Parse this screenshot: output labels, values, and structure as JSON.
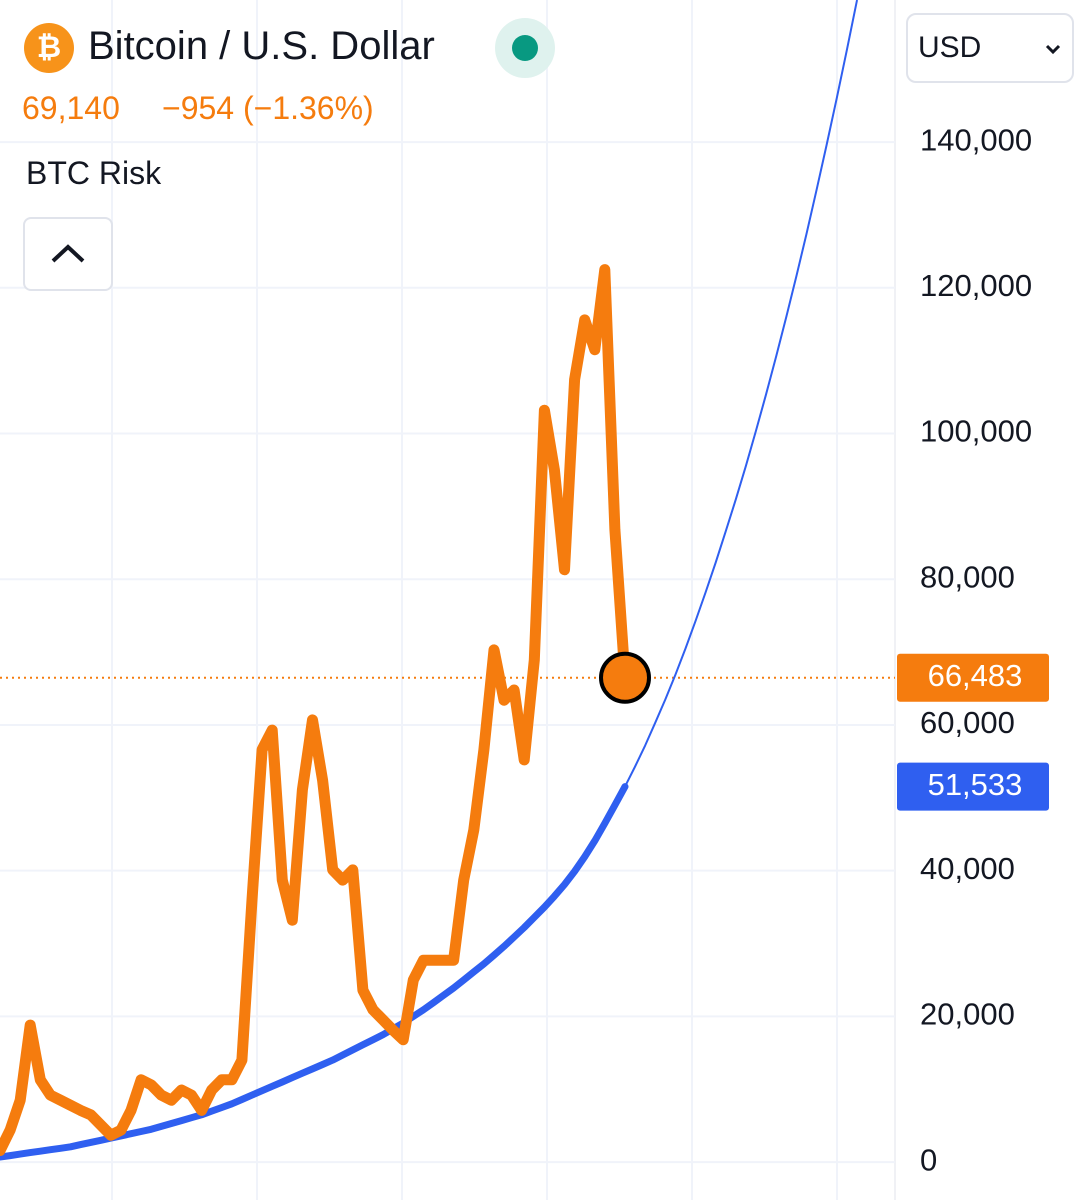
{
  "header": {
    "price": "69,140",
    "change": "−954 (−1.36%)",
    "indicator": "BTC Risk",
    "currency": "USD"
  },
  "chart_data": {
    "type": "line",
    "title": "Bitcoin / U.S. Dollar",
    "ylim": [
      -5200,
      159500
    ],
    "yticks": [
      0,
      {
        "value": 20000,
        "label": "20,000"
      },
      {
        "value": 40000,
        "label": "40,000"
      },
      {
        "value": 60000,
        "label": "60,000"
      },
      {
        "value": 80000,
        "label": "80,000"
      },
      {
        "value": 100000,
        "label": "100,000"
      },
      {
        "value": 120000,
        "label": "120,000"
      },
      {
        "value": 140000,
        "label": "140,000"
      }
    ],
    "grid": true,
    "series": [
      {
        "color": "#f57c0e",
        "values": [
          1600,
          4400,
          8500,
          18800,
          11300,
          9200,
          8500,
          7800,
          7100,
          6500,
          5100,
          3700,
          4400,
          7100,
          11300,
          10600,
          9200,
          8500,
          9900,
          9200,
          7100,
          9900,
          11300,
          11300,
          14000,
          36000,
          56600,
          59300,
          38700,
          33200,
          51100,
          60700,
          52400,
          40100,
          38700,
          40100,
          23600,
          20900,
          19500,
          18100,
          16800,
          25000,
          27700,
          27700,
          27700,
          27700,
          38700,
          45600,
          56600,
          70300,
          63400,
          64800,
          55200,
          68900,
          103200,
          95000,
          81300,
          107400,
          115600,
          111500,
          122500,
          86800,
          66483
        ]
      },
      {
        "color": "#2f5ff0",
        "values": [
          700,
          900,
          1100,
          1300,
          1500,
          1700,
          1900,
          2100,
          2400,
          2700,
          3000,
          3300,
          3600,
          3900,
          4200,
          4500,
          4900,
          5300,
          5700,
          6100,
          6500,
          7000,
          7500,
          8000,
          8600,
          9200,
          9800,
          10400,
          11000,
          11600,
          12200,
          12800,
          13400,
          14000,
          14700,
          15400,
          16100,
          16800,
          17500,
          18300,
          19100,
          20000,
          20900,
          21900,
          22900,
          23900,
          25000,
          26100,
          27200,
          28400,
          29600,
          30900,
          32200,
          33600,
          35000,
          36500,
          38100,
          39900,
          41900,
          44100,
          46500,
          49000,
          51533
        ]
      },
      {
        "color": "#2f5ff0",
        "values": [
          null,
          null,
          null,
          null,
          null,
          null,
          null,
          null,
          null,
          null,
          null,
          null,
          null,
          null,
          null,
          null,
          null,
          null,
          null,
          null,
          null,
          null,
          null,
          null,
          null,
          null,
          null,
          null,
          null,
          null,
          null,
          null,
          null,
          null,
          null,
          null,
          null,
          null,
          null,
          null,
          null,
          null,
          null,
          null,
          null,
          null,
          null,
          null,
          null,
          null,
          null,
          null,
          null,
          null,
          null,
          null,
          null,
          null,
          null,
          null,
          null,
          null,
          51533,
          54300,
          57200,
          60300,
          63500,
          66900,
          70500,
          74300,
          78200,
          82300,
          86600,
          91000,
          95600,
          100400,
          105400,
          110600,
          116000,
          121600,
          127400,
          133400,
          139600,
          146000,
          152600,
          159400
        ]
      }
    ],
    "price_markers": [
      {
        "value": 66483,
        "label": "66,483",
        "color": "#f57c0e"
      },
      {
        "value": 51533,
        "label": "51,533",
        "color": "#2f5ff0"
      }
    ]
  }
}
